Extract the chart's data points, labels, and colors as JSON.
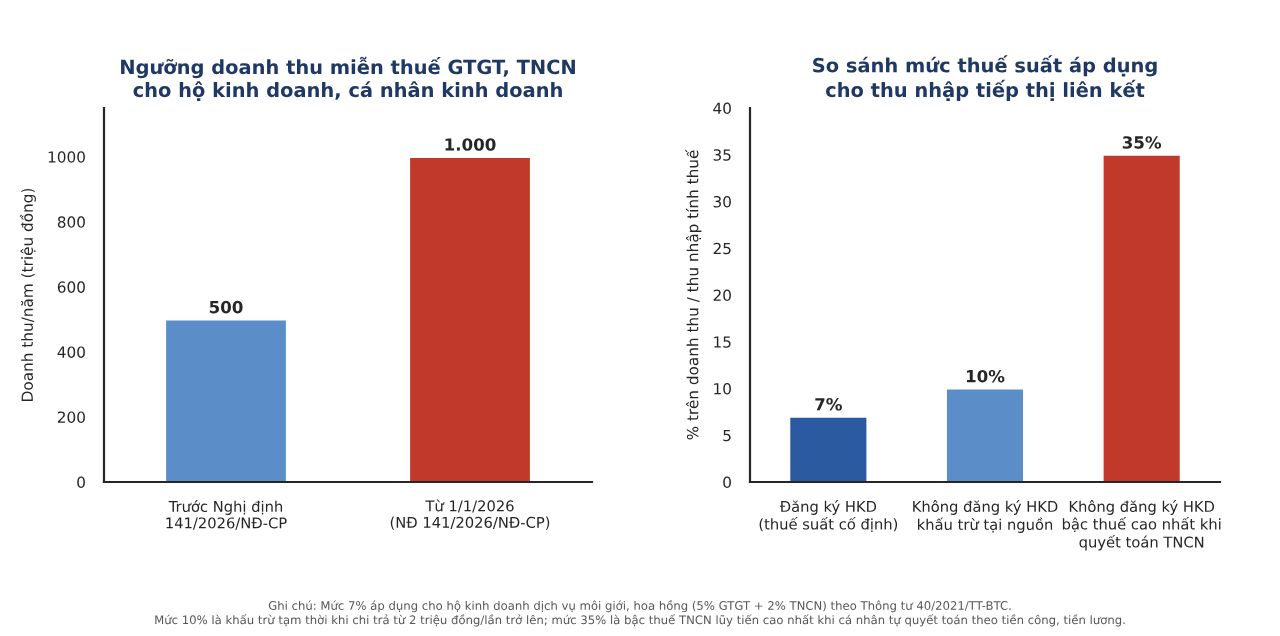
{
  "chart_data": [
    {
      "type": "bar",
      "title": "Ngưỡng doanh thu miễn thuế GTGT, TNCN\ncho hộ kinh doanh, cá nhân kinh doanh",
      "ylabel": "Doanh thu/năm (triệu đồng)",
      "categories": [
        "Trước Nghị định\n141/2026/NĐ-CP",
        "Từ 1/1/2026\n(NĐ 141/2026/NĐ-CP)"
      ],
      "values": [
        500,
        1000
      ],
      "colors": [
        "#5b8ec9",
        "#c0392b"
      ],
      "value_labels": [
        "500",
        "1.000"
      ],
      "ylim": [
        0,
        1150
      ],
      "yticks": [
        0,
        200,
        400,
        600,
        800,
        1000
      ],
      "grid": false,
      "legend": false
    },
    {
      "type": "bar",
      "title": "So sánh mức thuế suất áp dụng\ncho thu nhập tiếp thị liên kết",
      "ylabel": "% trên doanh thu / thu nhập tính thuế",
      "categories": [
        "Đăng ký HKD\n(thuế suất cố định)",
        "Không đăng ký HKD\nkhấu trừ tại nguồn",
        "Không đăng ký HKD\nbậc thuế cao nhất khi\nquyết toán TNCN"
      ],
      "values": [
        7,
        10,
        35
      ],
      "colors": [
        "#2c5aa0",
        "#5b8ec9",
        "#c0392b"
      ],
      "value_labels": [
        "7%",
        "10%",
        "35%"
      ],
      "ylim": [
        0,
        40
      ],
      "yticks": [
        0,
        5,
        10,
        15,
        20,
        25,
        30,
        35,
        40
      ],
      "grid": false,
      "legend": false,
      "annotations": [
        "Ghi chú: Mức 7% áp dụng cho hộ kinh doanh dịch vụ môi giới, hoa hồng (5% GTGT + 2% TNCN) theo Thông tư 40/2021/TT-BTC.\nMức 10% là khấu trừ tạm thời khi chi trả từ 2 triệu đồng/lần trở lên; mức 35% là bậc thuế TNCN lũy tiến cao nhất khi cá nhân tự quyết toán theo tiền công, tiền lương."
      ]
    }
  ]
}
